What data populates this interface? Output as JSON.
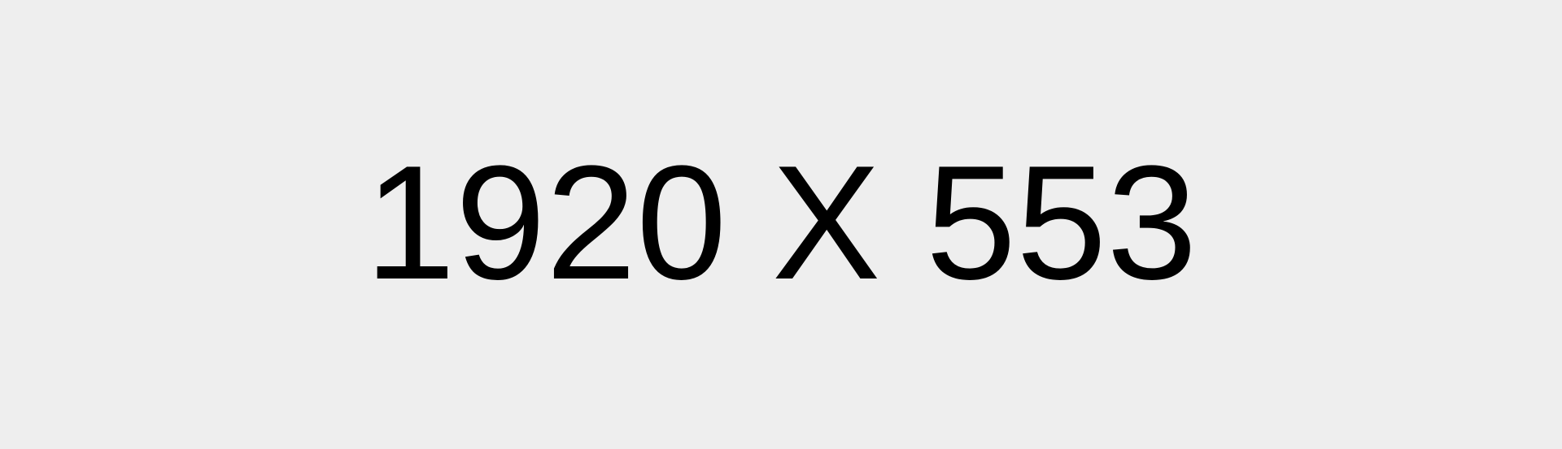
{
  "placeholder": {
    "text": "1920 X 553",
    "background_color": "#eeeeee",
    "text_color": "#000000"
  }
}
